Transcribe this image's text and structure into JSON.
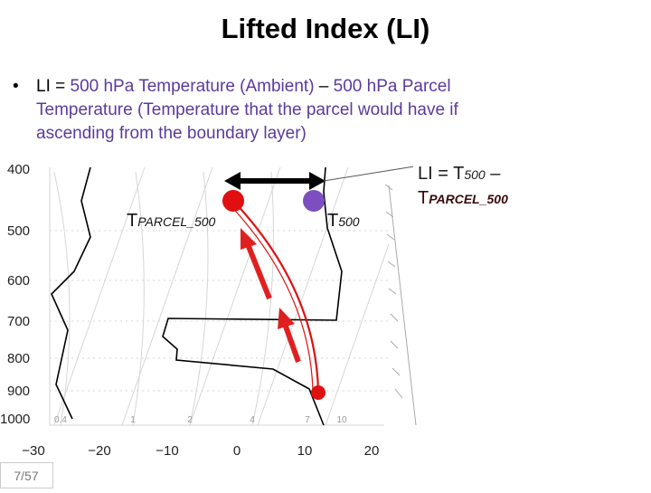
{
  "title": "Lifted Index (LI)",
  "bullet": {
    "lines": [
      [
        "LI = ",
        "500 hPa Temperature (Ambient)",
        " – ",
        "500 hPa Parcel"
      ],
      [
        "Temperature (Temperature that the parcel would have if"
      ],
      [
        "ascending from the boundary layer)"
      ]
    ]
  },
  "diagram": {
    "pressure_labels": [
      "400",
      "500",
      "600",
      "700",
      "800",
      "900",
      "1000"
    ],
    "temperature_labels": [
      "−30",
      "−20",
      "−10",
      "0",
      "10",
      "20"
    ],
    "mixing_ratio_labels": [
      "0.4",
      "1",
      "2",
      "4",
      "7",
      "10"
    ],
    "parcel_label": {
      "main": "T",
      "sub": "PARCEL_500"
    },
    "ambient_label": {
      "main": "T",
      "sub": "500"
    }
  },
  "callout": {
    "line1": [
      "LI = T",
      "500",
      " –"
    ],
    "line2": [
      "T",
      "PARCEL_500"
    ]
  },
  "page_number": "7/57"
}
